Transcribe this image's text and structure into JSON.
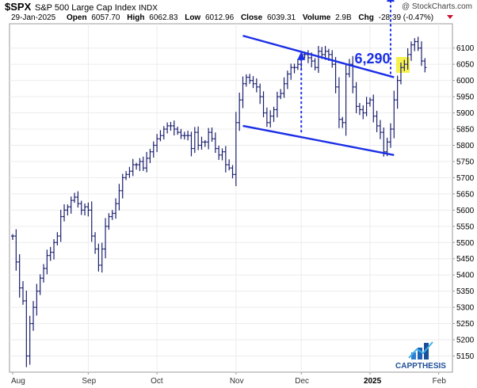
{
  "header": {
    "symbol": "$SPX",
    "name": "S&P 500 Large Cap Index",
    "exchange": "INDX",
    "copyright": "@ StockCharts.com",
    "date": "29-Jan-2025",
    "open_label": "Open",
    "open": "6057.70",
    "high_label": "High",
    "high": "6062.83",
    "low_label": "Low",
    "low": "6012.96",
    "close_label": "Close",
    "close": "6039.31",
    "volume_label": "Volume",
    "volume": "2.9B",
    "chg_label": "Chg",
    "chg": "-28.39 (-0.47%)"
  },
  "annotation": {
    "target_label": "6,290",
    "target_value": 6290
  },
  "branding": {
    "logo_text": "CAPPTHESIS"
  },
  "colors": {
    "bars": "#1a1f6e",
    "lines": "#1a2ee6",
    "highlight": "#f5f03a",
    "chg_negative": "#c8102e"
  },
  "chart_data": {
    "type": "ohlc",
    "ylim": [
      5100,
      6175
    ],
    "yticks": [
      5150,
      5200,
      5250,
      5300,
      5350,
      5400,
      5450,
      5500,
      5550,
      5600,
      5650,
      5700,
      5750,
      5800,
      5850,
      5900,
      5950,
      6000,
      6050,
      6100
    ],
    "yticks_labels": [
      "5150",
      "5200",
      "5250",
      "5300",
      "5350",
      "5400",
      "5450",
      "5500",
      "5550",
      "5600",
      "5650",
      "5700",
      "5750",
      "5800",
      "5850",
      "5900",
      "5950",
      "6000",
      "6050",
      "6100"
    ],
    "xticks": [
      {
        "label": "Aug",
        "index": 0,
        "bold": false
      },
      {
        "label": "Sep",
        "index": 22,
        "bold": false
      },
      {
        "label": "Oct",
        "index": 42,
        "bold": false
      },
      {
        "label": "Nov",
        "index": 65,
        "bold": false
      },
      {
        "label": "Dec",
        "index": 84,
        "bold": false
      },
      {
        "label": "2025",
        "index": 104,
        "bold": true
      },
      {
        "label": "Feb",
        "index": 124,
        "bold": false
      }
    ],
    "total_slots": 128,
    "reference_line": 6290,
    "closes": [
      5520,
      5440,
      5360,
      5320,
      5150,
      5250,
      5300,
      5350,
      5390,
      5420,
      5460,
      5470,
      5500,
      5520,
      5580,
      5600,
      5610,
      5630,
      5640,
      5620,
      5600,
      5610,
      5600,
      5520,
      5480,
      5430,
      5480,
      5550,
      5580,
      5590,
      5620,
      5660,
      5700,
      5710,
      5720,
      5740,
      5740,
      5750,
      5730,
      5760,
      5780,
      5800,
      5820,
      5830,
      5850,
      5860,
      5860,
      5850,
      5840,
      5830,
      5830,
      5830,
      5790,
      5840,
      5800,
      5810,
      5810,
      5840,
      5820,
      5790,
      5770,
      5780,
      5740,
      5730,
      5710,
      5870,
      5940,
      5990,
      6010,
      6000,
      5990,
      5980,
      5950,
      5900,
      5870,
      5890,
      5910,
      5950,
      5960,
      5990,
      6020,
      6040,
      6040,
      6050,
      6080,
      6080,
      6070,
      6060,
      6040,
      6090,
      6080,
      6090,
      6080,
      6050,
      5980,
      5880,
      5870,
      6020,
      6050,
      5980,
      5920,
      5910,
      5900,
      5930,
      5940,
      5890,
      5860,
      5840,
      5780,
      5810,
      5850,
      5940,
      6000,
      6040,
      6050,
      6080,
      6110,
      6120,
      6100,
      6060,
      6040
    ],
    "pattern_lines": [
      {
        "from": {
          "index": 67,
          "value": 6138
        },
        "to": {
          "index": 111,
          "value": 6010
        }
      },
      {
        "from": {
          "index": 67,
          "value": 5860
        },
        "to": {
          "index": 111,
          "value": 5770
        }
      }
    ],
    "measured_moves": [
      {
        "index": 84,
        "from": 5840,
        "to": 6085
      },
      {
        "index": 110,
        "from": 6020,
        "to": 6265
      }
    ],
    "highlight_index": 113
  }
}
